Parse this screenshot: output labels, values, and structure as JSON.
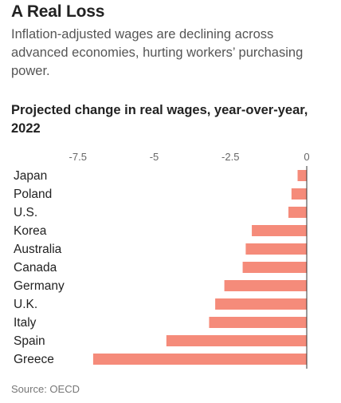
{
  "header": {
    "title": "A Real Loss",
    "subtitle": "Inflation-adjusted wages are declining across advanced economies, hurting workers’ purchasing power."
  },
  "source": "Source: OECD",
  "colors": {
    "bar": "#f58b7a",
    "axis": "#333333",
    "gridline": "#d9d9d9"
  },
  "chart_data": {
    "type": "bar",
    "orientation": "horizontal",
    "title": "Projected change in real wages, year-over-year, 2022",
    "categories": [
      "Japan",
      "Poland",
      "U.S.",
      "Korea",
      "Australia",
      "Canada",
      "Germany",
      "U.K.",
      "Italy",
      "Spain",
      "Greece"
    ],
    "values": [
      -0.3,
      -0.5,
      -0.6,
      -1.8,
      -2.0,
      -2.1,
      -2.7,
      -3.0,
      -3.2,
      -4.6,
      -7.0
    ],
    "ticks": [
      -7.5,
      -5,
      -2.5,
      0
    ],
    "tick_labels": [
      "-7.5",
      "-5",
      "-2.5",
      "0"
    ],
    "xlim": [
      -7.5,
      0
    ],
    "grid": false,
    "legend": "none"
  }
}
